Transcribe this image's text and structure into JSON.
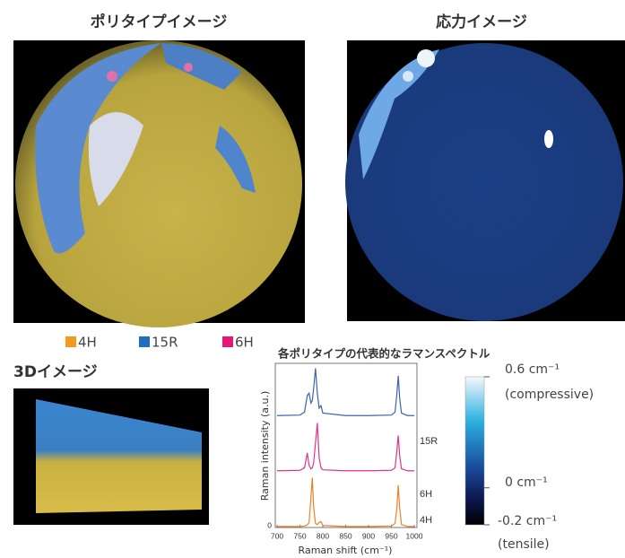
{
  "polytype_image": {
    "title": "ポリタイプイメージ"
  },
  "stress_image": {
    "title": "応力イメージ"
  },
  "legend": [
    {
      "label": "4H",
      "color": "#f39a1e"
    },
    {
      "label": "15R",
      "color": "#1f6fc0"
    },
    {
      "label": "6H",
      "color": "#e5177b"
    }
  ],
  "image_3d": {
    "title": "3Dイメージ"
  },
  "chart_data": {
    "type": "line",
    "title": "各ポリタイプの代表的なラマンスペクトル",
    "x_label": "Raman shift (cm⁻¹)",
    "y_label": "Raman intensity (a.u.)",
    "x": [
      700,
      750,
      760,
      766,
      770,
      774,
      777,
      780,
      784,
      788,
      792,
      796,
      800,
      850,
      900,
      950,
      958,
      962,
      965,
      968,
      972,
      985,
      1000
    ],
    "series": [
      {
        "name": "15R",
        "color": "#3a63b0",
        "values": [
          0.05,
          0.06,
          0.12,
          0.45,
          0.5,
          0.3,
          0.35,
          0.6,
          1.0,
          0.5,
          0.2,
          0.25,
          0.1,
          0.05,
          0.05,
          0.06,
          0.12,
          0.5,
          0.85,
          0.4,
          0.1,
          0.05,
          0.05
        ]
      },
      {
        "name": "6H",
        "color": "#e0338a",
        "values": [
          0.04,
          0.05,
          0.1,
          0.4,
          0.15,
          0.08,
          0.1,
          0.2,
          0.6,
          1.0,
          0.3,
          0.1,
          0.06,
          0.04,
          0.04,
          0.05,
          0.1,
          0.45,
          0.75,
          0.35,
          0.08,
          0.04,
          0.04
        ]
      },
      {
        "name": "4H",
        "color": "#f07f2a",
        "values": [
          0.02,
          0.02,
          0.03,
          0.05,
          0.1,
          0.6,
          1.0,
          0.4,
          0.08,
          0.06,
          0.1,
          0.12,
          0.04,
          0.02,
          0.02,
          0.03,
          0.08,
          0.4,
          0.85,
          0.4,
          0.06,
          0.02,
          0.02
        ]
      }
    ],
    "xlim": [
      700,
      1000
    ],
    "xticks": [
      700,
      750,
      800,
      850,
      900,
      950,
      1000
    ],
    "ylim": [
      0,
      3.3
    ],
    "yticks": [
      0
    ]
  },
  "colorbar": {
    "lim": [
      -0.2,
      0.6
    ],
    "ticks": [
      {
        "value": 0.6,
        "label": "0.6 cm⁻¹"
      },
      {
        "value": 0,
        "label": "0 cm⁻¹"
      },
      {
        "value": -0.2,
        "label": "-0.2 cm⁻¹"
      }
    ],
    "top_note": "(compressive)",
    "bottom_note": "(tensile)"
  }
}
